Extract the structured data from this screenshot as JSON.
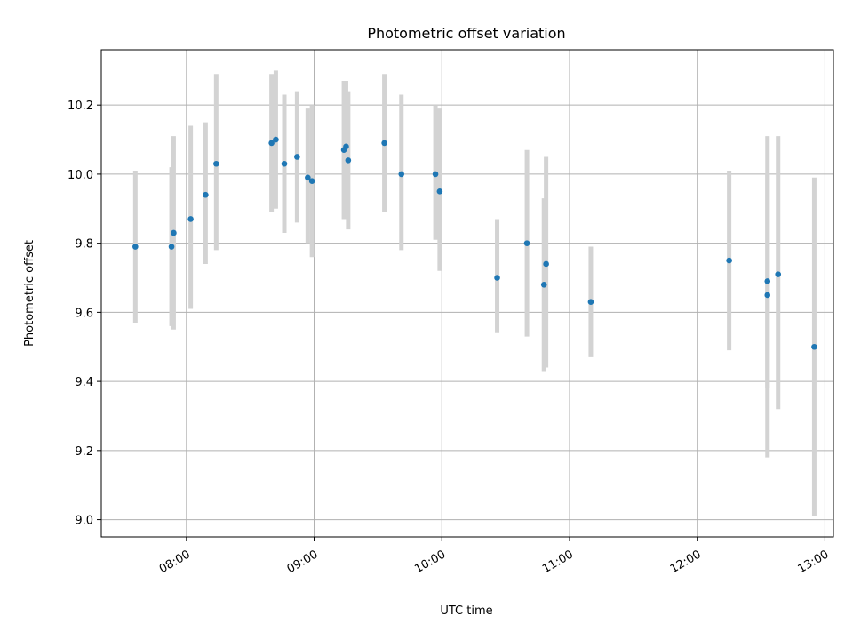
{
  "chart_data": {
    "type": "scatter",
    "title": "Photometric offset variation",
    "xlabel": "UTC time",
    "ylabel": "Photometric offset",
    "x_is_time": true,
    "xlim": [
      "07:20",
      "13:04"
    ],
    "ylim": [
      8.95,
      10.36
    ],
    "xticks": [
      "08:00",
      "09:00",
      "10:00",
      "11:00",
      "12:00",
      "13:00"
    ],
    "yticks": [
      "9.0",
      "9.2",
      "9.4",
      "9.6",
      "9.8",
      "10.0",
      "10.2"
    ],
    "grid": true,
    "marker_color": "#1f77b4",
    "errorbar_color": "#d3d3d3",
    "points": [
      {
        "t": "07:36",
        "y": 9.79,
        "lo": 9.57,
        "hi": 10.01
      },
      {
        "t": "07:53",
        "y": 9.79,
        "lo": 9.56,
        "hi": 10.02
      },
      {
        "t": "07:54",
        "y": 9.83,
        "lo": 9.55,
        "hi": 10.11
      },
      {
        "t": "08:02",
        "y": 9.87,
        "lo": 9.61,
        "hi": 10.14
      },
      {
        "t": "08:09",
        "y": 9.94,
        "lo": 9.74,
        "hi": 10.15
      },
      {
        "t": "08:14",
        "y": 10.03,
        "lo": 9.78,
        "hi": 10.29
      },
      {
        "t": "08:40",
        "y": 10.09,
        "lo": 9.89,
        "hi": 10.29
      },
      {
        "t": "08:42",
        "y": 10.1,
        "lo": 9.9,
        "hi": 10.3
      },
      {
        "t": "08:46",
        "y": 10.03,
        "lo": 9.83,
        "hi": 10.23
      },
      {
        "t": "08:52",
        "y": 10.05,
        "lo": 9.86,
        "hi": 10.24
      },
      {
        "t": "08:57",
        "y": 9.99,
        "lo": 9.8,
        "hi": 10.19
      },
      {
        "t": "08:59",
        "y": 9.98,
        "lo": 9.76,
        "hi": 10.2
      },
      {
        "t": "09:14",
        "y": 10.07,
        "lo": 9.87,
        "hi": 10.27
      },
      {
        "t": "09:15",
        "y": 10.08,
        "lo": 9.9,
        "hi": 10.27
      },
      {
        "t": "09:16",
        "y": 10.04,
        "lo": 9.84,
        "hi": 10.24
      },
      {
        "t": "09:33",
        "y": 10.09,
        "lo": 9.89,
        "hi": 10.29
      },
      {
        "t": "09:41",
        "y": 10.0,
        "lo": 9.78,
        "hi": 10.23
      },
      {
        "t": "09:57",
        "y": 10.0,
        "lo": 9.81,
        "hi": 10.2
      },
      {
        "t": "09:59",
        "y": 9.95,
        "lo": 9.72,
        "hi": 10.19
      },
      {
        "t": "10:26",
        "y": 9.7,
        "lo": 9.54,
        "hi": 9.87
      },
      {
        "t": "10:40",
        "y": 9.8,
        "lo": 9.53,
        "hi": 10.07
      },
      {
        "t": "10:48",
        "y": 9.68,
        "lo": 9.43,
        "hi": 9.93
      },
      {
        "t": "10:49",
        "y": 9.74,
        "lo": 9.44,
        "hi": 10.05
      },
      {
        "t": "11:10",
        "y": 9.63,
        "lo": 9.47,
        "hi": 9.79
      },
      {
        "t": "12:15",
        "y": 9.75,
        "lo": 9.49,
        "hi": 10.01
      },
      {
        "t": "12:33",
        "y": 9.69,
        "lo": 9.38,
        "hi": 10.0
      },
      {
        "t": "12:33",
        "y": 9.65,
        "lo": 9.18,
        "hi": 10.11
      },
      {
        "t": "12:38",
        "y": 9.71,
        "lo": 9.32,
        "hi": 10.11
      },
      {
        "t": "12:55",
        "y": 9.5,
        "lo": 9.01,
        "hi": 9.99
      }
    ]
  }
}
